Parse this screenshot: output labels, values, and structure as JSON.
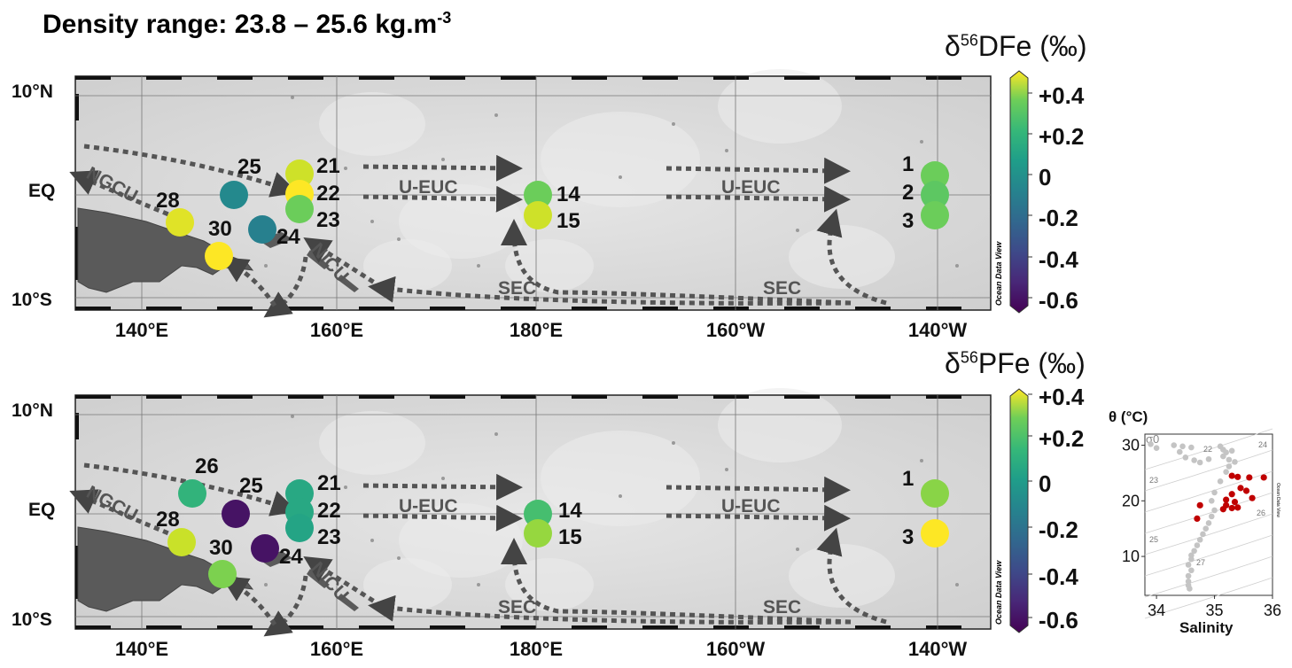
{
  "title": {
    "text": "Density range: 23.8 – 25.6 kg.m",
    "exponent": "-3"
  },
  "colors": {
    "land": "#5a5a5a",
    "ocean": "#dcdcdc",
    "arrow": "#555555",
    "viridis": [
      "#440154",
      "#3b528b",
      "#21918c",
      "#5ec962",
      "#fde725"
    ]
  },
  "panels": [
    {
      "id": "dfe",
      "colorbar_title": {
        "prefix": "δ",
        "sup": "56",
        "suffix": "DFe (‰)"
      },
      "colorbar_ticks": [
        "+0.4",
        "+0.2",
        "0",
        "-0.2",
        "-0.4",
        "-0.6"
      ],
      "colorbar_range": [
        -0.6,
        0.5
      ],
      "odv_label": "Ocean Data View",
      "lat_labels": [
        "10°N",
        "EQ",
        "10°S"
      ],
      "lon_labels": [
        "140°E",
        "160°E",
        "180°E",
        "160°W",
        "140°W"
      ],
      "current_labels": [
        "NGCU",
        "U-EUC",
        "U-EUC",
        "NICU",
        "SEC",
        "SEC"
      ],
      "stations": [
        {
          "label": "28",
          "value": 0.45
        },
        {
          "label": "25",
          "value": -0.08
        },
        {
          "label": "30",
          "value": 0.5
        },
        {
          "label": "24",
          "value": -0.12
        },
        {
          "label": "21",
          "value": 0.42
        },
        {
          "label": "22",
          "value": 0.55
        },
        {
          "label": "23",
          "value": 0.25
        },
        {
          "label": "14",
          "value": 0.25
        },
        {
          "label": "15",
          "value": 0.42
        },
        {
          "label": "1",
          "value": 0.25
        },
        {
          "label": "2",
          "value": 0.22
        },
        {
          "label": "3",
          "value": 0.25
        }
      ]
    },
    {
      "id": "pfe",
      "colorbar_title": {
        "prefix": "δ",
        "sup": "56",
        "suffix": "PFe (‰)"
      },
      "colorbar_ticks": [
        "+0.4",
        "+0.2",
        "0",
        "-0.2",
        "-0.4",
        "-0.6"
      ],
      "colorbar_range": [
        -0.6,
        0.4
      ],
      "odv_label": "Ocean Data View",
      "lat_labels": [
        "10°N",
        "EQ",
        "10°S"
      ],
      "lon_labels": [
        "140°E",
        "160°E",
        "180°E",
        "160°W",
        "140°W"
      ],
      "current_labels": [
        "NGCU",
        "U-EUC",
        "U-EUC",
        "NICU",
        "SEC",
        "SEC"
      ],
      "stations": [
        {
          "label": "26",
          "value": 0.05
        },
        {
          "label": "28",
          "value": 0.32
        },
        {
          "label": "25",
          "value": -0.55
        },
        {
          "label": "30",
          "value": 0.2
        },
        {
          "label": "24",
          "value": -0.55
        },
        {
          "label": "21",
          "value": 0.0
        },
        {
          "label": "22",
          "value": 0.0
        },
        {
          "label": "23",
          "value": -0.02
        },
        {
          "label": "14",
          "value": 0.1
        },
        {
          "label": "15",
          "value": 0.24
        },
        {
          "label": "1",
          "value": 0.22
        },
        {
          "label": "3",
          "value": 0.4
        }
      ]
    }
  ],
  "ts_diagram": {
    "ylabel": "θ (°C)",
    "xlabel": "Salinity",
    "sigma_label": "σ0",
    "xticks": [
      "34",
      "35",
      "36"
    ],
    "yticks": [
      "30",
      "20",
      "10"
    ],
    "isopycnal_labels": [
      "22",
      "23",
      "24",
      "25",
      "26",
      "27"
    ],
    "odv_label": "Ocean Data View",
    "xlim": [
      33.8,
      36
    ],
    "ylim": [
      3,
      32
    ],
    "red_points": [
      [
        35.3,
        24.5
      ],
      [
        35.4,
        24.3
      ],
      [
        35.6,
        24.2
      ],
      [
        35.85,
        24.2
      ],
      [
        35.45,
        22.3
      ],
      [
        35.55,
        21.8
      ],
      [
        35.3,
        21.2
      ],
      [
        35.65,
        20.5
      ],
      [
        35.2,
        20.2
      ],
      [
        35.35,
        19.8
      ],
      [
        35.2,
        19.2
      ],
      [
        35.3,
        18.7
      ],
      [
        35.15,
        18.5
      ],
      [
        35.4,
        18.8
      ],
      [
        34.75,
        19.2
      ],
      [
        34.7,
        16.8
      ]
    ],
    "grey_points": [
      [
        33.9,
        30.2
      ],
      [
        34.0,
        29.5
      ],
      [
        34.3,
        30.0
      ],
      [
        34.45,
        29.8
      ],
      [
        34.6,
        29.6
      ],
      [
        34.4,
        28.8
      ],
      [
        34.5,
        27.8
      ],
      [
        34.65,
        27.3
      ],
      [
        34.75,
        26.9
      ],
      [
        34.9,
        27.5
      ],
      [
        35.1,
        29.8
      ],
      [
        35.15,
        29.2
      ],
      [
        35.2,
        28.7
      ],
      [
        35.15,
        28.0
      ],
      [
        35.25,
        27.4
      ],
      [
        35.35,
        27.0
      ],
      [
        35.3,
        29.0
      ],
      [
        35.25,
        26.2
      ],
      [
        35.2,
        25.2
      ],
      [
        35.1,
        23.5
      ],
      [
        35.0,
        21.5
      ],
      [
        34.95,
        20.0
      ],
      [
        35.0,
        18.3
      ],
      [
        34.95,
        17.2
      ],
      [
        34.9,
        16.0
      ],
      [
        34.85,
        15.0
      ],
      [
        34.8,
        14.0
      ],
      [
        34.75,
        13.0
      ],
      [
        34.7,
        12.0
      ],
      [
        34.65,
        11.0
      ],
      [
        34.6,
        10.2
      ],
      [
        34.6,
        9.5
      ],
      [
        34.55,
        8.5
      ],
      [
        34.6,
        7.5
      ],
      [
        34.55,
        6.5
      ],
      [
        34.55,
        5.5
      ],
      [
        34.55,
        4.8
      ],
      [
        34.57,
        4.2
      ]
    ]
  }
}
